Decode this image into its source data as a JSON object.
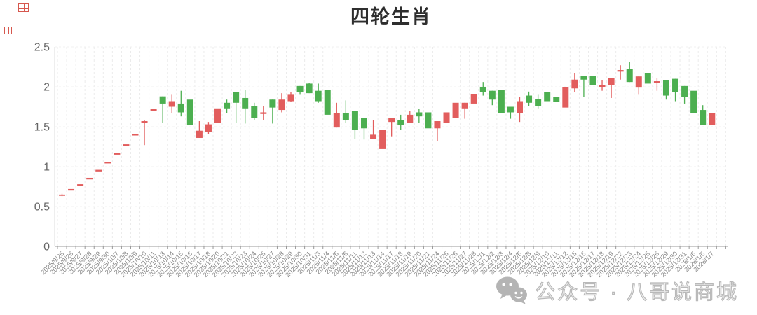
{
  "title": "四轮生肖",
  "watermark": {
    "icon": "wechat-icon",
    "text": "公众号 · 八哥说商城"
  },
  "colors": {
    "up": "#e25d5d",
    "down": "#4caf50",
    "axis": "#999999",
    "grid": "#ebebeb",
    "y_label": "#666666",
    "x_label": "#888888",
    "title": "#2e2e2e",
    "watermark": "#bdbdbd"
  },
  "chart_data": {
    "type": "candlestick",
    "title": "四轮生肖",
    "xlabel": "",
    "ylabel": "",
    "ylim": [
      0,
      2.5
    ],
    "y_ticks": [
      0,
      0.5,
      1,
      1.5,
      2,
      2.5
    ],
    "y_tick_labels": [
      "0",
      "0.5",
      "1",
      "1.5",
      "2",
      "2.5"
    ],
    "grid": true,
    "legend": "none",
    "up_color": "#e25d5d",
    "down_color": "#4caf50",
    "columns": [
      "date",
      "open",
      "close",
      "high",
      "low",
      "direction(u=red,d=green)"
    ],
    "rows": [
      [
        "2025/9/25",
        0.64,
        0.65,
        0.66,
        0.63,
        "u"
      ],
      [
        "2025/9/26",
        0.7,
        0.72,
        0.72,
        0.7,
        "u"
      ],
      [
        "2025/9/27",
        0.76,
        0.78,
        0.78,
        0.76,
        "u"
      ],
      [
        "2025/9/28",
        0.84,
        0.86,
        0.86,
        0.84,
        "u"
      ],
      [
        "2025/9/29",
        0.94,
        0.96,
        0.96,
        0.94,
        "u"
      ],
      [
        "2025/9/30",
        1.04,
        1.06,
        1.06,
        1.04,
        "u"
      ],
      [
        "2025/10/7",
        1.15,
        1.17,
        1.17,
        1.15,
        "u"
      ],
      [
        "2025/10/8",
        1.26,
        1.28,
        1.28,
        1.26,
        "u"
      ],
      [
        "2025/10/9",
        1.39,
        1.41,
        1.41,
        1.39,
        "u"
      ],
      [
        "2025/10/10",
        1.55,
        1.57,
        1.58,
        1.27,
        "u"
      ],
      [
        "2025/10/11",
        1.7,
        1.72,
        1.72,
        1.7,
        "u"
      ],
      [
        "2025/10/13",
        1.88,
        1.79,
        1.88,
        1.55,
        "d"
      ],
      [
        "2025/10/14",
        1.75,
        1.82,
        1.9,
        1.67,
        "u"
      ],
      [
        "2025/10/15",
        1.79,
        1.68,
        1.95,
        1.63,
        "d"
      ],
      [
        "2025/10/16",
        1.84,
        1.52,
        1.84,
        1.52,
        "d"
      ],
      [
        "2025/10/17",
        1.36,
        1.45,
        1.57,
        1.36,
        "u"
      ],
      [
        "2025/10/18",
        1.43,
        1.53,
        1.56,
        1.41,
        "u"
      ],
      [
        "2025/10/20",
        1.55,
        1.73,
        1.73,
        1.55,
        "u"
      ],
      [
        "2025/10/21",
        1.8,
        1.73,
        1.84,
        1.67,
        "d"
      ],
      [
        "2025/10/22",
        1.93,
        1.8,
        1.93,
        1.55,
        "d"
      ],
      [
        "2025/10/23",
        1.86,
        1.73,
        1.96,
        1.54,
        "d"
      ],
      [
        "2025/10/24",
        1.76,
        1.61,
        1.8,
        1.58,
        "d"
      ],
      [
        "2025/10/25",
        1.66,
        1.68,
        1.76,
        1.58,
        "u"
      ],
      [
        "2025/10/27",
        1.84,
        1.74,
        1.84,
        1.54,
        "d"
      ],
      [
        "2025/10/28",
        1.71,
        1.84,
        1.92,
        1.68,
        "u"
      ],
      [
        "2025/10/29",
        1.82,
        1.9,
        1.93,
        1.81,
        "u"
      ],
      [
        "2025/10/30",
        2.01,
        1.93,
        2.01,
        1.9,
        "d"
      ],
      [
        "2025/10/31",
        2.04,
        1.92,
        2.05,
        1.92,
        "d"
      ],
      [
        "2025/11/3",
        1.95,
        1.82,
        2.04,
        1.8,
        "d"
      ],
      [
        "2025/11/4",
        1.96,
        1.65,
        1.96,
        1.65,
        "d"
      ],
      [
        "2025/11/5",
        1.49,
        1.67,
        1.8,
        1.49,
        "u"
      ],
      [
        "2025/11/6",
        1.67,
        1.58,
        1.83,
        1.55,
        "d"
      ],
      [
        "2025/11/11",
        1.7,
        1.46,
        1.7,
        1.35,
        "d"
      ],
      [
        "2025/11/12",
        1.61,
        1.48,
        1.61,
        1.34,
        "d"
      ],
      [
        "2025/11/13",
        1.35,
        1.4,
        1.58,
        1.35,
        "u"
      ],
      [
        "2025/11/14",
        1.22,
        1.46,
        1.46,
        1.22,
        "u"
      ],
      [
        "2025/11/17",
        1.56,
        1.61,
        1.61,
        1.38,
        "u"
      ],
      [
        "2025/11/18",
        1.58,
        1.52,
        1.65,
        1.46,
        "d"
      ],
      [
        "2025/11/19",
        1.55,
        1.65,
        1.7,
        1.55,
        "u"
      ],
      [
        "2025/11/20",
        1.68,
        1.63,
        1.72,
        1.55,
        "d"
      ],
      [
        "2025/11/21",
        1.68,
        1.48,
        1.68,
        1.48,
        "d"
      ],
      [
        "2025/11/24",
        1.48,
        1.57,
        1.57,
        1.32,
        "u"
      ],
      [
        "2025/11/25",
        1.55,
        1.68,
        1.68,
        1.55,
        "u"
      ],
      [
        "2025/11/26",
        1.61,
        1.8,
        1.8,
        1.61,
        "u"
      ],
      [
        "2025/11/27",
        1.73,
        1.8,
        1.8,
        1.6,
        "u"
      ],
      [
        "2025/11/28",
        1.79,
        1.91,
        1.91,
        1.79,
        "u"
      ],
      [
        "2025/12/1",
        2.0,
        1.93,
        2.06,
        1.89,
        "d"
      ],
      [
        "2025/12/2",
        1.95,
        1.84,
        1.95,
        1.77,
        "d"
      ],
      [
        "2025/12/3",
        1.96,
        1.67,
        1.96,
        1.67,
        "d"
      ],
      [
        "2025/12/4",
        1.75,
        1.68,
        1.75,
        1.6,
        "d"
      ],
      [
        "2025/12/5",
        1.67,
        1.82,
        1.87,
        1.56,
        "u"
      ],
      [
        "2025/12/8",
        1.89,
        1.8,
        1.94,
        1.76,
        "d"
      ],
      [
        "2025/12/9",
        1.85,
        1.76,
        1.9,
        1.73,
        "d"
      ],
      [
        "2025/12/10",
        1.93,
        1.82,
        1.93,
        1.82,
        "d"
      ],
      [
        "2025/12/11",
        1.87,
        1.81,
        1.87,
        1.81,
        "d"
      ],
      [
        "2025/12/12",
        1.74,
        2.0,
        2.0,
        1.74,
        "u"
      ],
      [
        "2025/12/15",
        1.98,
        2.09,
        2.17,
        1.93,
        "u"
      ],
      [
        "2025/12/16",
        2.14,
        2.09,
        2.14,
        1.87,
        "d"
      ],
      [
        "2025/12/17",
        2.14,
        2.02,
        2.14,
        2.02,
        "d"
      ],
      [
        "2025/12/18",
        2.0,
        2.02,
        2.08,
        1.95,
        "u"
      ],
      [
        "2025/12/19",
        2.02,
        2.11,
        2.11,
        1.86,
        "u"
      ],
      [
        "2025/12/22",
        2.19,
        2.21,
        2.27,
        2.09,
        "u"
      ],
      [
        "2025/12/23",
        2.22,
        2.06,
        2.31,
        2.06,
        "d"
      ],
      [
        "2025/12/24",
        1.99,
        2.13,
        2.13,
        1.9,
        "u"
      ],
      [
        "2025/12/25",
        2.17,
        2.04,
        2.17,
        2.04,
        "d"
      ],
      [
        "2025/12/26",
        2.05,
        2.07,
        2.11,
        1.95,
        "u"
      ],
      [
        "2025/12/29",
        2.08,
        1.89,
        2.08,
        1.84,
        "d"
      ],
      [
        "2025/12/30",
        2.1,
        1.93,
        2.1,
        1.82,
        "d"
      ],
      [
        "2025/12/31",
        2.01,
        1.87,
        2.01,
        1.79,
        "d"
      ],
      [
        "2026/1/5",
        1.95,
        1.67,
        1.95,
        1.67,
        "d"
      ],
      [
        "2026/1/6",
        1.71,
        1.52,
        1.77,
        1.52,
        "d"
      ],
      [
        "2026/1/7",
        1.52,
        1.67,
        1.67,
        1.52,
        "u"
      ]
    ]
  }
}
